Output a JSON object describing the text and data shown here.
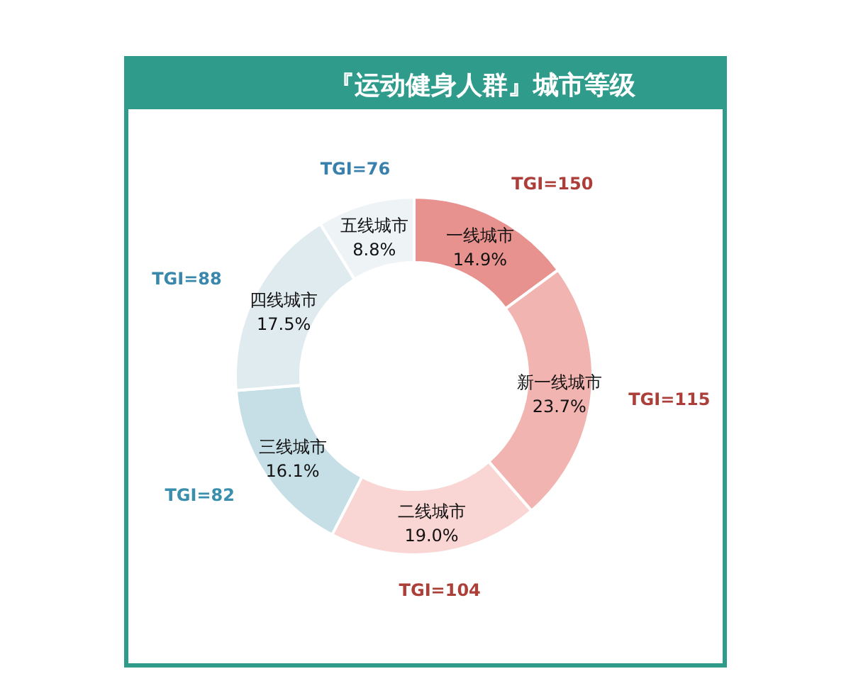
{
  "chart_data": {
    "type": "donut",
    "title": "『运动健身人群』城市等级",
    "categories": [
      "一线城市",
      "新一线城市",
      "二线城市",
      "三线城市",
      "四线城市",
      "五线城市"
    ],
    "values": [
      14.9,
      23.7,
      19.0,
      16.1,
      17.5,
      8.8
    ],
    "colors": [
      "#e8928f",
      "#f2b4b1",
      "#f9d6d4",
      "#c6dee6",
      "#e0ebf0",
      "#eef3f6"
    ],
    "value_labels": [
      "14.9%",
      "23.7%",
      "19.0%",
      "16.1%",
      "17.5%",
      "8.8%"
    ],
    "legend": false,
    "annotations": [
      "TGI=150",
      "TGI=115",
      "TGI=104",
      "TGI=82",
      "TGI=88",
      "TGI=76"
    ]
  }
}
